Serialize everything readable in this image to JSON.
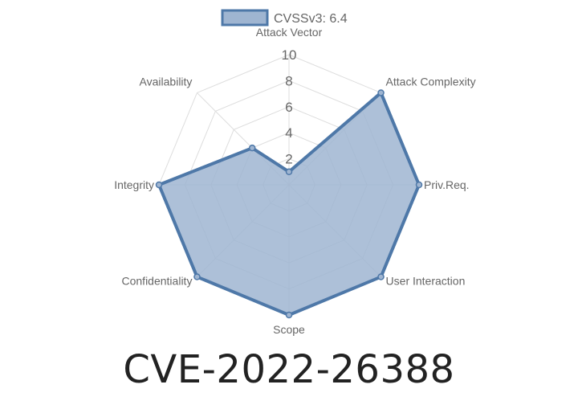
{
  "page_title": "CVE-2022-26388",
  "chart_data": {
    "type": "radar",
    "axes": [
      "Attack Vector",
      "Attack Complexity",
      "Priv.Req.",
      "User Interaction",
      "Scope",
      "Confidentiality",
      "Integrity",
      "Availability"
    ],
    "ticks": [
      "2",
      "4",
      "6",
      "8",
      "10"
    ],
    "range": [
      0,
      10
    ],
    "grid": true,
    "legend_position": "top",
    "series": [
      {
        "name": "CVSSv3: 6.4",
        "values": [
          1,
          10,
          10,
          10,
          10,
          10,
          10,
          4
        ],
        "stroke_color": "#4e78a8",
        "fill_color": "#9fb5d1"
      }
    ]
  }
}
